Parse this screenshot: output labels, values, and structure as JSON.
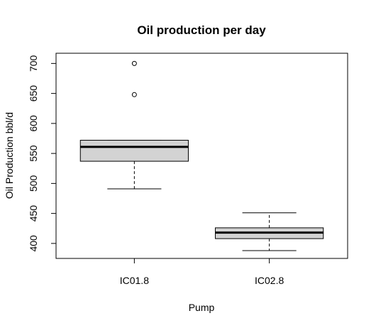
{
  "chart_data": {
    "type": "box",
    "title": "Oil production per day",
    "xlabel": "Pump",
    "ylabel": "Oil Production bbl/d",
    "categories": [
      "IC01.8",
      "IC02.8"
    ],
    "color": "#d3d3d3",
    "boxes": [
      {
        "whisker_low": 491,
        "q1": 537,
        "median": 561,
        "q3": 572,
        "whisker_high": 572,
        "outliers": [
          648,
          700
        ]
      },
      {
        "whisker_low": 388,
        "q1": 408,
        "median": 418,
        "q3": 426,
        "whisker_high": 451,
        "outliers": []
      }
    ],
    "ylim": [
      375,
      717
    ],
    "yticks": [
      400,
      450,
      500,
      550,
      600,
      650,
      700
    ]
  }
}
